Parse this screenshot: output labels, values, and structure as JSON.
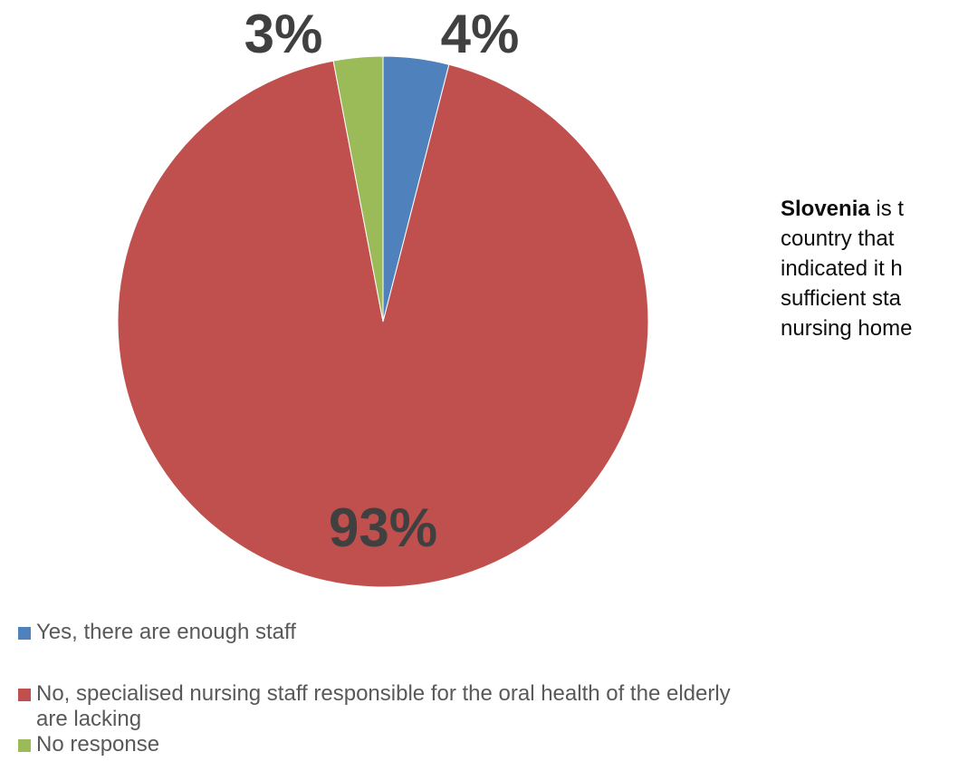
{
  "chart_data": {
    "type": "pie",
    "categories": [
      "Yes, there are enough staff",
      "No, specialised nursing staff responsible for the oral health of the elderly are lacking",
      "No response"
    ],
    "values": [
      4,
      93,
      3
    ],
    "data_labels": [
      "4%",
      "93%",
      "3%"
    ],
    "colors": [
      "#4f81bd",
      "#c0504d",
      "#9bbb59"
    ],
    "legend_placement": "bottom-left"
  },
  "note": {
    "bold": "Slovenia",
    "line1_rest": " is t",
    "line2": "country that",
    "line3": "indicated it h",
    "line4": "sufficient sta",
    "line5": "nursing home"
  },
  "legend": {
    "item1": "Yes, there are enough staff",
    "item2_line1": "No, specialised nursing staff responsible for the oral health of the elderly",
    "item2_line2": "are lacking",
    "item3": "No response"
  }
}
